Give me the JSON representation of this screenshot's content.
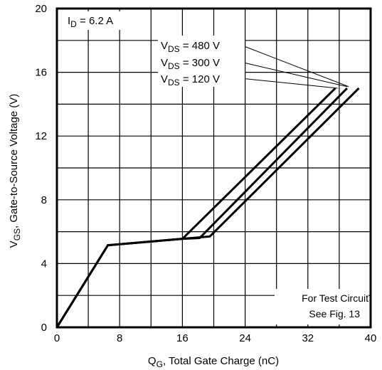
{
  "chart_data": {
    "type": "line",
    "xlabel": {
      "main": "Q",
      "sub": "G",
      "rest": ", Total Gate Charge (nC)"
    },
    "ylabel": {
      "main": "V",
      "sub": "GS",
      "rest": ", Gate-to-Source Voltage (V)"
    },
    "xlim": [
      0,
      40
    ],
    "ylim": [
      0,
      20
    ],
    "x_ticks": [
      0,
      8,
      16,
      24,
      32,
      40
    ],
    "y_ticks": [
      0,
      4,
      8,
      12,
      16,
      20
    ],
    "grid_x": [
      0,
      4,
      8,
      12,
      16,
      20,
      24,
      28,
      32,
      36,
      40
    ],
    "grid_y": [
      0,
      2,
      4,
      6,
      8,
      10,
      12,
      14,
      16,
      18,
      20
    ],
    "grid": true,
    "condition": {
      "main": "I",
      "sub": "D",
      "rest": " = 6.2 A"
    },
    "test_note": [
      "For Test Circuit",
      "See Fig. 13"
    ],
    "series": [
      {
        "name": {
          "main": "V",
          "sub": "DS",
          "rest": " = 480 V"
        },
        "points": [
          [
            0,
            0
          ],
          [
            6.5,
            5.15
          ],
          [
            16,
            5.55
          ],
          [
            19.5,
            5.7
          ],
          [
            38.5,
            15.0
          ]
        ],
        "label_target": [
          37.2,
          15.1
        ]
      },
      {
        "name": {
          "main": "V",
          "sub": "DS",
          "rest": " = 300 V"
        },
        "points": [
          [
            0,
            0
          ],
          [
            6.5,
            5.15
          ],
          [
            16,
            5.55
          ],
          [
            18.2,
            5.6
          ],
          [
            37.0,
            15.0
          ]
        ],
        "label_target": [
          37.0,
          15.1
        ]
      },
      {
        "name": {
          "main": "V",
          "sub": "DS",
          "rest": " = 120 V"
        },
        "points": [
          [
            0,
            0
          ],
          [
            6.5,
            5.15
          ],
          [
            16,
            5.55
          ],
          [
            35.5,
            15.0
          ]
        ],
        "label_target": [
          35.8,
          15.0
        ]
      }
    ]
  }
}
